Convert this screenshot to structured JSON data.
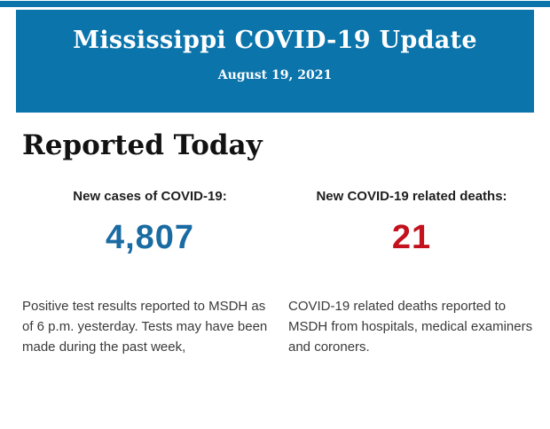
{
  "header": {
    "title": "Mississippi COVID-19 Update",
    "date": "August 19, 2021"
  },
  "section": {
    "heading": "Reported Today"
  },
  "stats": {
    "cases": {
      "label": "New cases of COVID-19:",
      "value": "4,807",
      "description": "Positive test results reported to MSDH as of 6 p.m. yesterday. Tests may have been made during the past week,"
    },
    "deaths": {
      "label": "New COVID-19 related deaths:",
      "value": "21",
      "description": "COVID-19 related deaths reported to MSDH from hospitals, medical examiners and coroners."
    }
  },
  "colors": {
    "header_bg": "#0b74ab",
    "cases_value": "#1a6ba2",
    "deaths_value": "#c3121e"
  }
}
